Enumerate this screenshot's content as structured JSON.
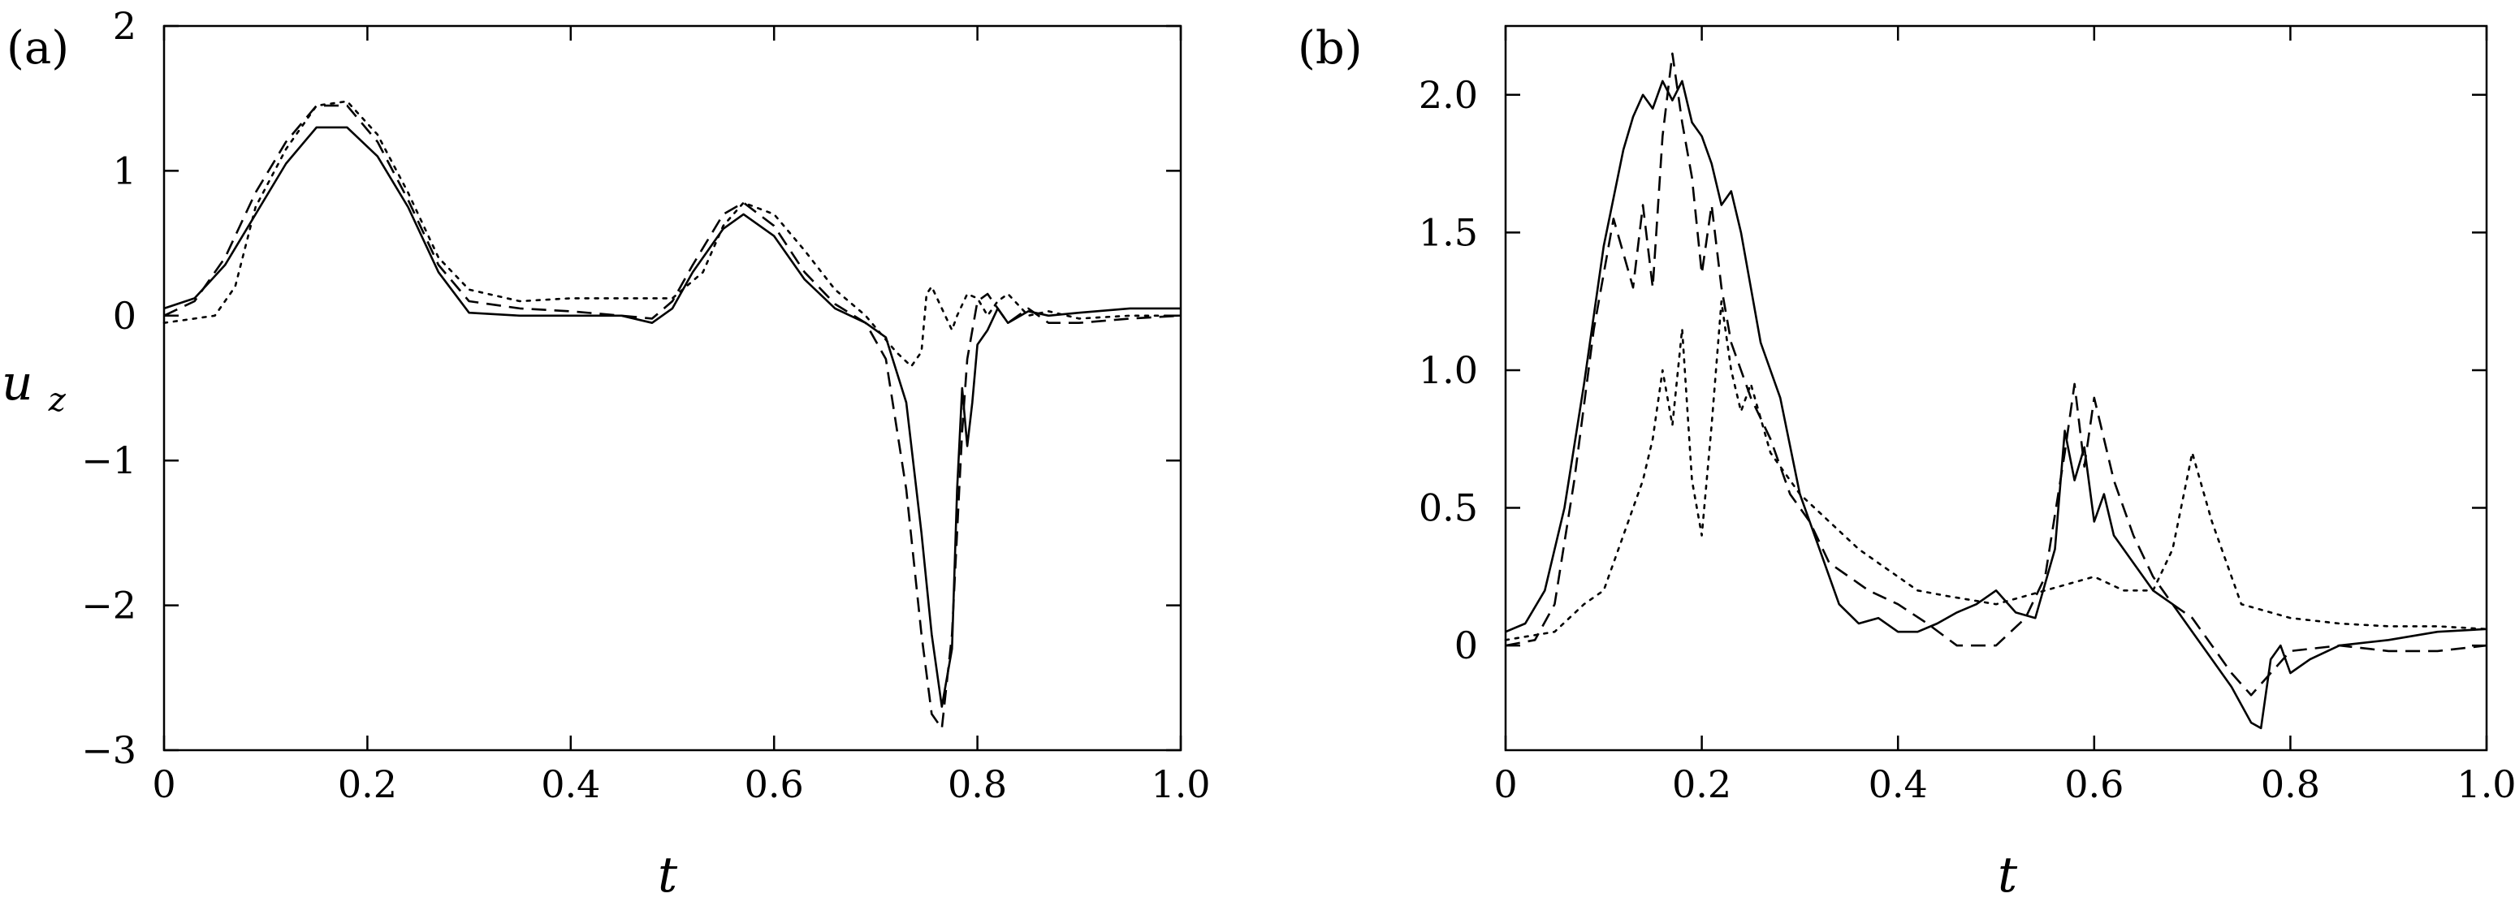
{
  "chart_data": [
    {
      "panel_label": "(a)",
      "type": "line",
      "xlabel": "t",
      "ylabel": "u",
      "ylabel_sub": "z",
      "xlim": [
        0,
        1.0
      ],
      "ylim": [
        -3,
        2
      ],
      "xticks": [
        0,
        0.2,
        0.4,
        0.6,
        0.8,
        1.0
      ],
      "xtick_labels": [
        "0",
        "0.2",
        "0.4",
        "0.6",
        "0.8",
        "1.0"
      ],
      "yticks": [
        -3,
        -2,
        -1,
        0,
        1,
        2
      ],
      "ytick_labels": [
        "−3",
        "−2",
        "−1",
        "0",
        "1",
        "2"
      ],
      "grid": false,
      "series": [
        {
          "style": "solid",
          "x": [
            0,
            0.03,
            0.06,
            0.09,
            0.12,
            0.15,
            0.18,
            0.21,
            0.24,
            0.27,
            0.3,
            0.35,
            0.4,
            0.45,
            0.48,
            0.5,
            0.52,
            0.55,
            0.57,
            0.6,
            0.63,
            0.66,
            0.69,
            0.71,
            0.73,
            0.745,
            0.755,
            0.765,
            0.775,
            0.78,
            0.785,
            0.79,
            0.795,
            0.8,
            0.81,
            0.82,
            0.83,
            0.85,
            0.87,
            0.9,
            0.95,
            1.0
          ],
          "y": [
            0.05,
            0.12,
            0.35,
            0.7,
            1.05,
            1.3,
            1.3,
            1.1,
            0.75,
            0.3,
            0.02,
            0.0,
            0.0,
            0.0,
            -0.05,
            0.05,
            0.3,
            0.6,
            0.7,
            0.55,
            0.25,
            0.05,
            -0.05,
            -0.15,
            -0.6,
            -1.5,
            -2.2,
            -2.7,
            -2.3,
            -1.2,
            -0.5,
            -0.9,
            -0.6,
            -0.2,
            -0.1,
            0.05,
            -0.05,
            0.03,
            0.0,
            0.02,
            0.05,
            0.05
          ]
        },
        {
          "style": "dashed",
          "x": [
            0,
            0.03,
            0.06,
            0.09,
            0.12,
            0.15,
            0.18,
            0.21,
            0.24,
            0.27,
            0.3,
            0.35,
            0.4,
            0.45,
            0.48,
            0.5,
            0.52,
            0.55,
            0.57,
            0.6,
            0.63,
            0.66,
            0.69,
            0.71,
            0.73,
            0.745,
            0.755,
            0.765,
            0.775,
            0.785,
            0.79,
            0.8,
            0.81,
            0.82,
            0.83,
            0.85,
            0.87,
            0.9,
            0.95,
            1.0
          ],
          "y": [
            0.0,
            0.1,
            0.4,
            0.85,
            1.2,
            1.45,
            1.45,
            1.2,
            0.8,
            0.35,
            0.1,
            0.05,
            0.03,
            0.0,
            -0.02,
            0.1,
            0.35,
            0.7,
            0.78,
            0.62,
            0.3,
            0.08,
            -0.05,
            -0.3,
            -1.2,
            -2.2,
            -2.75,
            -2.85,
            -2.2,
            -0.8,
            -0.3,
            0.1,
            0.15,
            0.05,
            -0.05,
            0.05,
            -0.05,
            -0.05,
            -0.02,
            0.0
          ]
        },
        {
          "style": "dotted",
          "x": [
            0,
            0.03,
            0.05,
            0.07,
            0.09,
            0.12,
            0.15,
            0.18,
            0.21,
            0.24,
            0.27,
            0.3,
            0.35,
            0.4,
            0.45,
            0.5,
            0.53,
            0.55,
            0.57,
            0.6,
            0.63,
            0.66,
            0.69,
            0.72,
            0.735,
            0.745,
            0.75,
            0.755,
            0.765,
            0.775,
            0.78,
            0.79,
            0.8,
            0.81,
            0.82,
            0.83,
            0.85,
            0.87,
            0.9,
            0.95,
            1.0
          ],
          "y": [
            -0.05,
            -0.02,
            0.0,
            0.2,
            0.75,
            1.15,
            1.45,
            1.48,
            1.25,
            0.85,
            0.4,
            0.18,
            0.1,
            0.12,
            0.12,
            0.12,
            0.3,
            0.62,
            0.78,
            0.7,
            0.45,
            0.18,
            0.0,
            -0.25,
            -0.35,
            -0.25,
            0.15,
            0.2,
            0.05,
            -0.1,
            0.0,
            0.15,
            0.12,
            0.0,
            0.1,
            0.15,
            0.0,
            0.03,
            -0.02,
            0.0,
            0.0
          ]
        }
      ]
    },
    {
      "panel_label": "(b)",
      "type": "line",
      "xlabel": "t",
      "xlim": [
        0,
        1.0
      ],
      "ylim": [
        -0.38,
        2.25
      ],
      "xticks": [
        0,
        0.2,
        0.4,
        0.6,
        0.8,
        1.0
      ],
      "xtick_labels": [
        "0",
        "0.2",
        "0.4",
        "0.6",
        "0.8",
        "1.0"
      ],
      "yticks": [
        0,
        0.5,
        1.0,
        1.5,
        2.0
      ],
      "ytick_labels": [
        "0",
        "0.5",
        "1.0",
        "1.5",
        "2.0"
      ],
      "grid": false,
      "series": [
        {
          "style": "solid",
          "x": [
            0,
            0.02,
            0.04,
            0.06,
            0.08,
            0.1,
            0.12,
            0.13,
            0.14,
            0.15,
            0.16,
            0.17,
            0.18,
            0.19,
            0.2,
            0.21,
            0.22,
            0.23,
            0.24,
            0.25,
            0.26,
            0.28,
            0.3,
            0.32,
            0.34,
            0.36,
            0.38,
            0.4,
            0.42,
            0.44,
            0.46,
            0.48,
            0.5,
            0.52,
            0.54,
            0.56,
            0.57,
            0.58,
            0.59,
            0.6,
            0.61,
            0.62,
            0.64,
            0.66,
            0.68,
            0.7,
            0.72,
            0.74,
            0.76,
            0.77,
            0.78,
            0.79,
            0.8,
            0.82,
            0.85,
            0.9,
            0.95,
            1.0
          ],
          "y": [
            0.05,
            0.08,
            0.2,
            0.5,
            0.95,
            1.45,
            1.8,
            1.92,
            2.0,
            1.95,
            2.05,
            1.98,
            2.05,
            1.9,
            1.85,
            1.75,
            1.6,
            1.65,
            1.5,
            1.3,
            1.1,
            0.9,
            0.55,
            0.35,
            0.15,
            0.08,
            0.1,
            0.05,
            0.05,
            0.08,
            0.12,
            0.15,
            0.2,
            0.12,
            0.1,
            0.35,
            0.78,
            0.6,
            0.72,
            0.45,
            0.55,
            0.4,
            0.3,
            0.2,
            0.15,
            0.05,
            -0.05,
            -0.15,
            -0.28,
            -0.3,
            -0.05,
            0.0,
            -0.1,
            -0.05,
            0.0,
            0.02,
            0.05,
            0.06
          ]
        },
        {
          "style": "dashed",
          "x": [
            0,
            0.03,
            0.05,
            0.07,
            0.09,
            0.11,
            0.13,
            0.14,
            0.15,
            0.16,
            0.17,
            0.18,
            0.19,
            0.2,
            0.21,
            0.22,
            0.23,
            0.24,
            0.25,
            0.27,
            0.29,
            0.31,
            0.33,
            0.35,
            0.37,
            0.4,
            0.43,
            0.46,
            0.5,
            0.53,
            0.55,
            0.57,
            0.58,
            0.59,
            0.6,
            0.62,
            0.64,
            0.66,
            0.68,
            0.7,
            0.72,
            0.74,
            0.76,
            0.78,
            0.8,
            0.85,
            0.9,
            0.95,
            1.0
          ],
          "y": [
            0.0,
            0.02,
            0.15,
            0.6,
            1.15,
            1.55,
            1.3,
            1.6,
            1.3,
            1.85,
            2.15,
            1.9,
            1.7,
            1.35,
            1.6,
            1.3,
            1.1,
            1.0,
            0.9,
            0.75,
            0.55,
            0.45,
            0.3,
            0.25,
            0.2,
            0.15,
            0.08,
            0.0,
            0.0,
            0.1,
            0.25,
            0.7,
            0.95,
            0.65,
            0.9,
            0.6,
            0.4,
            0.25,
            0.15,
            0.1,
            0.0,
            -0.1,
            -0.18,
            -0.1,
            -0.02,
            0.0,
            -0.02,
            -0.02,
            0.0
          ]
        },
        {
          "style": "dotted",
          "x": [
            0,
            0.05,
            0.08,
            0.1,
            0.12,
            0.14,
            0.15,
            0.16,
            0.17,
            0.18,
            0.19,
            0.2,
            0.21,
            0.22,
            0.23,
            0.24,
            0.25,
            0.27,
            0.3,
            0.33,
            0.36,
            0.38,
            0.4,
            0.42,
            0.45,
            0.5,
            0.55,
            0.6,
            0.63,
            0.66,
            0.68,
            0.7,
            0.72,
            0.75,
            0.8,
            0.85,
            0.9,
            0.95,
            1.0
          ],
          "y": [
            0.02,
            0.05,
            0.15,
            0.2,
            0.4,
            0.6,
            0.75,
            1.0,
            0.8,
            1.15,
            0.6,
            0.4,
            0.8,
            1.25,
            1.0,
            0.85,
            0.95,
            0.7,
            0.55,
            0.45,
            0.35,
            0.3,
            0.25,
            0.2,
            0.18,
            0.15,
            0.2,
            0.25,
            0.2,
            0.2,
            0.35,
            0.7,
            0.45,
            0.15,
            0.1,
            0.08,
            0.07,
            0.07,
            0.06
          ]
        }
      ]
    }
  ]
}
